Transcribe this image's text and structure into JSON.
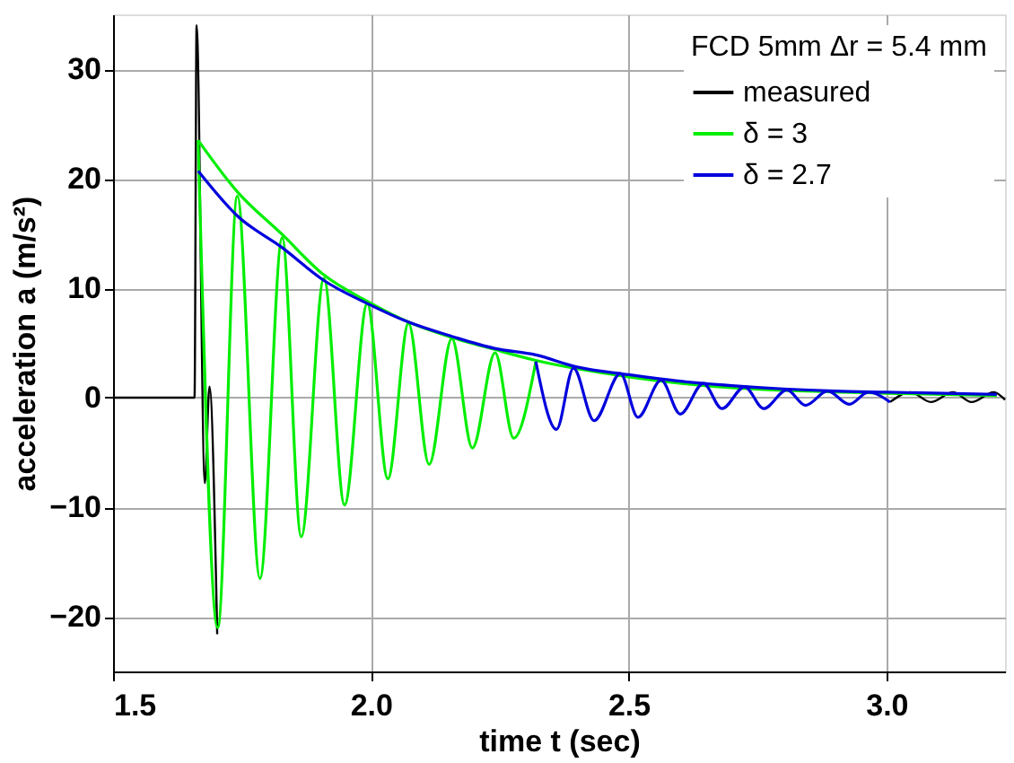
{
  "chart_data": {
    "type": "line",
    "xlabel": "time t (sec)",
    "ylabel": "acceleration a (m/s²)",
    "legend_title": "FCD 5mm Δr = 5.4 mm",
    "xlim": [
      1.5,
      3.23
    ],
    "xticks": [
      {
        "value": 1.5,
        "label": "1.5"
      },
      {
        "value": 2.0,
        "label": "2.0"
      },
      {
        "value": 2.5,
        "label": "2.5"
      },
      {
        "value": 3.0,
        "label": "3.0"
      }
    ],
    "ylim": [
      -25,
      35
    ],
    "yticks": [
      -20,
      -10,
      0,
      10,
      20,
      30
    ],
    "grid": true,
    "legend": "top right",
    "marker": "none",
    "line_style": "solid",
    "series": [
      {
        "name": "measured",
        "color": "#000000",
        "x": [
          1.5,
          1.6,
          1.658,
          1.662,
          1.678,
          1.687,
          1.702,
          null,
          3.007,
          3.047,
          3.086,
          3.129,
          3.165,
          3.208,
          3.23
        ],
        "values": [
          0,
          0,
          0,
          34,
          -7.8,
          1,
          -21.6,
          null,
          -0.4,
          0.5,
          -0.4,
          0.5,
          -0.4,
          0.5,
          -0.2
        ]
      },
      {
        "name": "δ = 3",
        "color": "#00ee00",
        "x": [
          1.665,
          1.703,
          1.741,
          1.785,
          1.828,
          1.865,
          1.909,
          1.949,
          1.993,
          2.033,
          2.073,
          2.113,
          2.157,
          2.197,
          2.241,
          2.277,
          2.32
        ],
        "values": [
          23.5,
          -21,
          18.4,
          -16.5,
          14.6,
          -12.7,
          10.9,
          -9.8,
          8.6,
          -7.4,
          6.8,
          -6.1,
          5.4,
          -4.6,
          4.1,
          -3.7,
          3.3
        ]
      },
      {
        "color": "#00ee00",
        "x": [
          1.665,
          1.741,
          1.828,
          1.909,
          1.993,
          2.073,
          2.157,
          2.24,
          2.32,
          2.5,
          2.7,
          3.0,
          3.214
        ],
        "values": [
          23.5,
          18.8,
          14.9,
          11.2,
          8.8,
          6.9,
          5.5,
          4.4,
          3.4,
          1.9,
          0.9,
          0.4,
          0.2
        ]
      },
      {
        "name": "δ = 2.7",
        "color": "#0000dd",
        "x": [
          2.32,
          2.36,
          2.393,
          2.433,
          2.484,
          2.518,
          2.563,
          2.6,
          2.645,
          2.681,
          2.725,
          2.762,
          2.807,
          2.843,
          2.886,
          2.928,
          2.965,
          3.007
        ],
        "values": [
          3.3,
          -2.9,
          2.7,
          -2.1,
          2.2,
          -1.8,
          1.6,
          -1.5,
          1.3,
          -1.0,
          1.0,
          -1.0,
          0.7,
          -0.7,
          0.6,
          -0.6,
          0.5,
          -0.4
        ]
      },
      {
        "color": "#0000dd",
        "x": [
          1.665,
          1.741,
          1.828,
          1.909,
          1.993,
          2.073,
          2.157,
          2.24,
          2.32,
          2.4,
          2.5,
          2.6,
          2.7,
          2.8,
          2.9,
          3.0,
          3.214
        ],
        "values": [
          20.7,
          16.6,
          13.7,
          10.7,
          8.6,
          6.9,
          5.6,
          4.5,
          3.9,
          2.8,
          2.1,
          1.5,
          1.1,
          0.8,
          0.6,
          0.5,
          0.3
        ]
      }
    ]
  }
}
